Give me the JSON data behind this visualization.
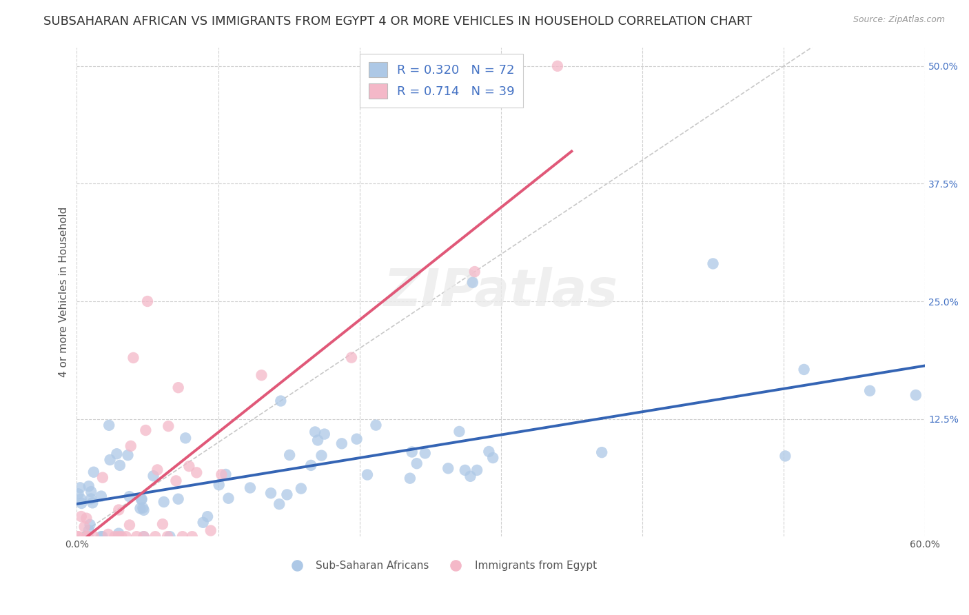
{
  "title": "SUBSAHARAN AFRICAN VS IMMIGRANTS FROM EGYPT 4 OR MORE VEHICLES IN HOUSEHOLD CORRELATION CHART",
  "source_text": "Source: ZipAtlas.com",
  "ylabel": "4 or more Vehicles in Household",
  "xlim": [
    0.0,
    0.6
  ],
  "ylim": [
    0.0,
    0.52
  ],
  "x_ticks": [
    0.0,
    0.1,
    0.2,
    0.3,
    0.4,
    0.5,
    0.6
  ],
  "x_tick_labels": [
    "0.0%",
    "",
    "",
    "",
    "",
    "",
    "60.0%"
  ],
  "y_ticks": [
    0.125,
    0.25,
    0.375,
    0.5
  ],
  "y_tick_labels": [
    "12.5%",
    "25.0%",
    "37.5%",
    "50.0%"
  ],
  "blue_R": 0.32,
  "blue_N": 72,
  "pink_R": 0.714,
  "pink_N": 39,
  "blue_color": "#adc8e6",
  "pink_color": "#f4b8c8",
  "blue_line_color": "#3464b4",
  "pink_line_color": "#e05878",
  "diag_color": "#c8c8c8",
  "grid_color": "#d0d0d0",
  "watermark": "ZIPatlas",
  "legend_label_blue": "Sub-Saharan Africans",
  "legend_label_pink": "Immigrants from Egypt",
  "title_fontsize": 13,
  "axis_label_fontsize": 11,
  "tick_fontsize": 10,
  "blue_intercept": 0.03,
  "blue_slope": 0.21,
  "pink_intercept": -0.03,
  "pink_slope": 1.05
}
